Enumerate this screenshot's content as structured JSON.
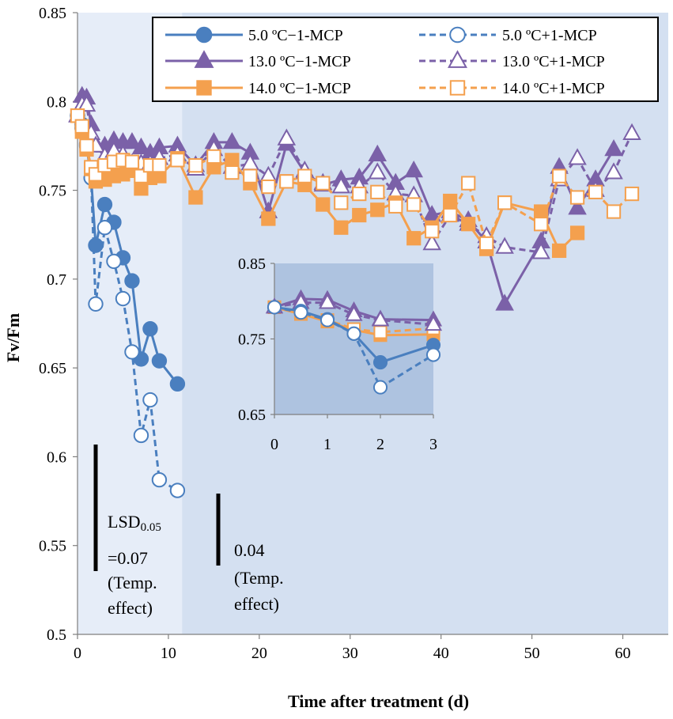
{
  "chart_data": {
    "type": "line",
    "title": "",
    "xlabel": "Time after treatment (d)",
    "ylabel": "Fv/Fm",
    "xlim": [
      0,
      65
    ],
    "ylim": [
      0.5,
      0.85
    ],
    "xticks": [
      0,
      10,
      20,
      30,
      40,
      50,
      60
    ],
    "yticks": [
      "0.5",
      "0.55",
      "0.6",
      "0.65",
      "0.7",
      "0.75",
      "0.8",
      "0.85"
    ],
    "shaded_regions": [
      {
        "x_from": 0,
        "x_to": 11.5,
        "color": "#e6edf8"
      },
      {
        "x_from": 11.5,
        "x_to": 65,
        "color": "#d4e0f1"
      }
    ],
    "series": [
      {
        "name": "5.0 ºC−1-MCP",
        "color": "#4a7fbf",
        "marker": "circle",
        "filled": true,
        "dashed": false,
        "x": [
          0,
          0.5,
          1,
          1.5,
          2,
          3,
          4,
          5,
          6,
          7,
          8,
          9,
          11
        ],
        "y": [
          0.792,
          0.787,
          0.776,
          0.757,
          0.719,
          0.742,
          0.732,
          0.712,
          0.699,
          0.655,
          0.672,
          0.654,
          0.641
        ]
      },
      {
        "name": "5.0 ºC+1-MCP",
        "color": "#4a7fbf",
        "marker": "circle",
        "filled": false,
        "dashed": true,
        "x": [
          0,
          0.5,
          1,
          1.5,
          2,
          3,
          4,
          5,
          6,
          7,
          8,
          9,
          11
        ],
        "y": [
          0.792,
          0.785,
          0.775,
          0.757,
          0.686,
          0.729,
          0.71,
          0.689,
          0.659,
          0.612,
          0.632,
          0.587,
          0.581
        ]
      },
      {
        "name": "13.0 ºC−1-MCP",
        "color": "#7b61a8",
        "marker": "triangle",
        "filled": true,
        "dashed": false,
        "x": [
          0,
          0.5,
          1,
          1.5,
          2,
          3,
          4,
          5,
          6,
          7,
          8,
          9,
          11,
          13,
          15,
          17,
          19,
          21,
          23,
          25,
          27,
          29,
          31,
          33,
          35,
          37,
          39,
          41,
          43,
          45,
          47,
          51,
          53,
          55,
          57,
          59
        ],
        "y": [
          0.792,
          0.803,
          0.802,
          0.787,
          0.776,
          0.775,
          0.778,
          0.777,
          0.777,
          0.774,
          0.771,
          0.774,
          0.775,
          0.764,
          0.777,
          0.777,
          0.771,
          0.738,
          0.776,
          0.76,
          0.753,
          0.756,
          0.757,
          0.77,
          0.754,
          0.761,
          0.736,
          0.738,
          0.733,
          0.721,
          0.686,
          0.721,
          0.763,
          0.74,
          0.756,
          0.773
        ]
      },
      {
        "name": "13.0 ºC+1-MCP",
        "color": "#7b61a8",
        "marker": "triangle",
        "filled": false,
        "dashed": true,
        "x": [
          0,
          0.5,
          1,
          1.5,
          2,
          3,
          4,
          5,
          6,
          7,
          8,
          9,
          11,
          13,
          15,
          17,
          19,
          21,
          23,
          25,
          27,
          29,
          31,
          33,
          35,
          37,
          39,
          41,
          43,
          45,
          47,
          51,
          53,
          55,
          57,
          59,
          61
        ],
        "y": [
          0.792,
          0.798,
          0.798,
          0.782,
          0.775,
          0.769,
          0.772,
          0.77,
          0.765,
          0.765,
          0.765,
          0.768,
          0.77,
          0.762,
          0.773,
          0.763,
          0.765,
          0.758,
          0.779,
          0.761,
          0.754,
          0.752,
          0.752,
          0.76,
          0.748,
          0.747,
          0.72,
          0.736,
          0.731,
          0.724,
          0.718,
          0.715,
          0.756,
          0.768,
          0.75,
          0.76,
          0.782
        ]
      },
      {
        "name": "14.0 ºC−1-MCP",
        "color": "#f4a04e",
        "marker": "square",
        "filled": true,
        "dashed": false,
        "x": [
          0,
          0.5,
          1,
          1.5,
          2,
          3,
          4,
          5,
          6,
          7,
          8,
          9,
          11,
          13,
          15,
          17,
          19,
          21,
          23,
          25,
          27,
          29,
          31,
          33,
          35,
          37,
          39,
          41,
          43,
          45,
          47,
          51,
          53,
          55
        ],
        "y": [
          0.792,
          0.783,
          0.773,
          0.762,
          0.755,
          0.756,
          0.758,
          0.759,
          0.761,
          0.751,
          0.757,
          0.758,
          0.768,
          0.746,
          0.763,
          0.767,
          0.754,
          0.734,
          0.755,
          0.753,
          0.742,
          0.729,
          0.736,
          0.739,
          0.743,
          0.723,
          0.729,
          0.744,
          0.731,
          0.717,
          0.743,
          0.738,
          0.716,
          0.726
        ]
      },
      {
        "name": "14.0 ºC+1-MCP",
        "color": "#f4a04e",
        "marker": "square",
        "filled": false,
        "dashed": true,
        "x": [
          0,
          0.5,
          1,
          1.5,
          2,
          3,
          4,
          5,
          6,
          7,
          8,
          9,
          11,
          13,
          15,
          17,
          19,
          21,
          23,
          25,
          27,
          29,
          31,
          33,
          35,
          37,
          39,
          41,
          43,
          45,
          47,
          51,
          53,
          55,
          57,
          59,
          61
        ],
        "y": [
          0.792,
          0.786,
          0.775,
          0.763,
          0.759,
          0.764,
          0.766,
          0.767,
          0.766,
          0.758,
          0.764,
          0.764,
          0.767,
          0.764,
          0.769,
          0.76,
          0.758,
          0.752,
          0.755,
          0.758,
          0.754,
          0.743,
          0.748,
          0.749,
          0.741,
          0.742,
          0.727,
          0.736,
          0.754,
          0.72,
          0.743,
          0.731,
          0.758,
          0.746,
          0.749,
          0.738,
          0.748
        ]
      }
    ],
    "annotations": [
      {
        "lines": [
          "LSD",
          "=0.07",
          "(Temp.",
          "effect)"
        ],
        "sub": "0.05",
        "bar_value": 0.07
      },
      {
        "lines": [
          "0.04",
          "(Temp.",
          "effect)"
        ],
        "bar_value": 0.04
      }
    ],
    "inset": {
      "xlim": [
        0,
        3
      ],
      "ylim": [
        0.65,
        0.85
      ],
      "xticks": [
        "0",
        "1",
        "2",
        "3"
      ],
      "yticks": [
        "0.65",
        "0.75",
        "0.85"
      ],
      "series": [
        {
          "name": "5.0 ºC−1-MCP",
          "x": [
            0,
            0.5,
            1,
            1.5,
            2,
            3
          ],
          "y": [
            0.792,
            0.787,
            0.776,
            0.757,
            0.719,
            0.742
          ]
        },
        {
          "name": "5.0 ºC+1-MCP",
          "x": [
            0,
            0.5,
            1,
            1.5,
            2,
            3
          ],
          "y": [
            0.792,
            0.785,
            0.775,
            0.757,
            0.686,
            0.729
          ]
        },
        {
          "name": "13.0 ºC−1-MCP",
          "x": [
            0,
            0.5,
            1,
            1.5,
            2,
            3
          ],
          "y": [
            0.792,
            0.803,
            0.802,
            0.787,
            0.776,
            0.775
          ]
        },
        {
          "name": "13.0 ºC+1-MCP",
          "x": [
            0,
            0.5,
            1,
            1.5,
            2,
            3
          ],
          "y": [
            0.792,
            0.798,
            0.798,
            0.782,
            0.775,
            0.769
          ]
        },
        {
          "name": "14.0 ºC−1-MCP",
          "x": [
            0,
            0.5,
            1,
            1.5,
            2,
            3
          ],
          "y": [
            0.792,
            0.783,
            0.773,
            0.762,
            0.755,
            0.756
          ]
        },
        {
          "name": "14.0 ºC+1-MCP",
          "x": [
            0,
            0.5,
            1,
            1.5,
            2,
            3
          ],
          "y": [
            0.792,
            0.786,
            0.775,
            0.763,
            0.759,
            0.764
          ]
        }
      ]
    }
  }
}
